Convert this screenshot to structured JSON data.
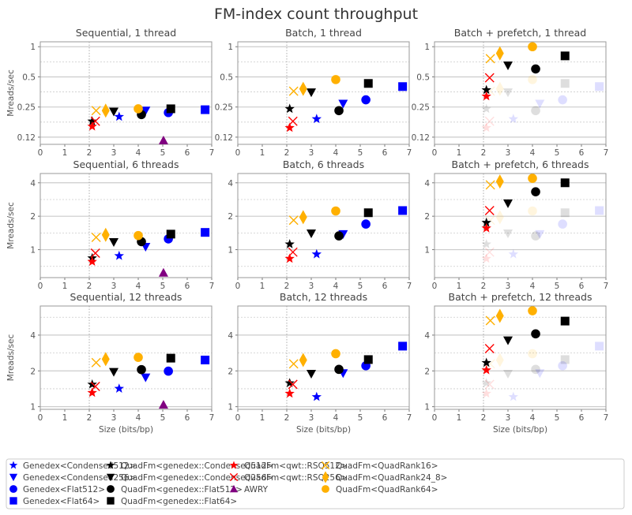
{
  "title": "FM-index count throughput",
  "ylabel": "Mreads/sec",
  "xlabel": "Size (bits/bp)",
  "colors": {
    "blue": "#0000ff",
    "black": "#000000",
    "red": "#ff0000",
    "purple": "#800080",
    "orange": "#ffb000"
  },
  "series": [
    {
      "name": "Genedex<Condensed512>",
      "color": "#0000ff",
      "marker": "star",
      "x": 3.22
    },
    {
      "name": "Genedex<Condensed256>",
      "color": "#0000ff",
      "marker": "triangle-down",
      "x": 4.3
    },
    {
      "name": "Genedex<Flat512>",
      "color": "#0000ff",
      "marker": "circle",
      "x": 5.23
    },
    {
      "name": "Genedex<Flat64>",
      "color": "#0000ff",
      "marker": "square",
      "x": 6.73
    },
    {
      "name": "QuadFm<genedex::Condensed512>",
      "color": "#000000",
      "marker": "star",
      "x": 2.12
    },
    {
      "name": "QuadFm<genedex::Condensed256>",
      "color": "#000000",
      "marker": "triangle-down",
      "x": 3.0
    },
    {
      "name": "QuadFm<genedex::Flat512>",
      "color": "#000000",
      "marker": "circle",
      "x": 4.13
    },
    {
      "name": "QuadFm<genedex::Flat64>",
      "color": "#000000",
      "marker": "square",
      "x": 5.33
    },
    {
      "name": "QuadFm<qwt::RSQ512>",
      "color": "#ff0000",
      "marker": "star",
      "x": 2.12
    },
    {
      "name": "QuadFm<qwt::RSQ256>",
      "color": "#ff0000",
      "marker": "x",
      "x": 2.25
    },
    {
      "name": "AWRY",
      "color": "#800080",
      "marker": "triangle-up",
      "x": 5.03
    },
    {
      "name": "QuadFm<QuadRank16>",
      "color": "#ffb000",
      "marker": "x",
      "x": 2.28
    },
    {
      "name": "QuadFm<QuadRank24_8>",
      "color": "#ffb000",
      "marker": "thin-diamond",
      "x": 2.67
    },
    {
      "name": "QuadFm<QuadRank64>",
      "color": "#ffb000",
      "marker": "circle",
      "x": 4.0
    }
  ],
  "chart_data": [
    {
      "type": "scatter",
      "title": "Sequential, 1 thread",
      "xlim": [
        0,
        7
      ],
      "ylim": [
        0.106,
        1.12
      ],
      "yscale": "log2",
      "yticks": [
        0.125,
        0.25,
        0.5,
        1
      ],
      "ytick_labels": [
        "0.12",
        "0.25",
        "0.5",
        "1"
      ],
      "xticks": [
        0,
        1,
        2,
        3,
        4,
        5,
        6,
        7
      ],
      "grid": true,
      "values": [
        0.2,
        0.23,
        0.22,
        0.235,
        0.18,
        0.225,
        0.21,
        0.24,
        0.16,
        0.18,
        0.116,
        0.23,
        0.23,
        0.24
      ],
      "faded_values": null
    },
    {
      "type": "scatter",
      "title": "Batch, 1 thread",
      "xlim": [
        0,
        7
      ],
      "ylim": [
        0.106,
        1.12
      ],
      "yscale": "log2",
      "yticks": [
        0.125,
        0.25,
        0.5,
        1
      ],
      "ytick_labels": [
        "0.12",
        "0.25",
        "0.5",
        "1"
      ],
      "xticks": [
        0,
        1,
        2,
        3,
        4,
        5,
        6,
        7
      ],
      "grid": true,
      "values": [
        0.19,
        0.27,
        0.295,
        0.4,
        0.24,
        0.35,
        0.23,
        0.43,
        0.155,
        0.18,
        null,
        0.36,
        0.38,
        0.47
      ],
      "faded_values": null
    },
    {
      "type": "scatter",
      "title": "Batch + prefetch, 1 thread",
      "xlim": [
        0,
        7
      ],
      "ylim": [
        0.106,
        1.12
      ],
      "yscale": "log2",
      "yticks": [
        0.125,
        0.25,
        0.5,
        1
      ],
      "ytick_labels": [
        "0.12",
        "0.25",
        "0.5",
        "1"
      ],
      "xticks": [
        0,
        1,
        2,
        3,
        4,
        5,
        6,
        7
      ],
      "grid": true,
      "values": [
        null,
        null,
        null,
        null,
        0.37,
        0.65,
        0.6,
        0.81,
        0.32,
        0.49,
        null,
        0.76,
        0.86,
        1.0
      ],
      "faded_values": [
        0.19,
        0.27,
        0.295,
        0.4,
        0.24,
        0.35,
        0.23,
        0.43,
        0.155,
        0.18,
        null,
        0.36,
        0.38,
        0.47
      ]
    },
    {
      "type": "scatter",
      "title": "Sequential, 6 threads",
      "xlim": [
        0,
        7
      ],
      "ylim": [
        0.56,
        4.85
      ],
      "yscale": "log2",
      "yticks": [
        1,
        2,
        4
      ],
      "ytick_labels": [
        "1",
        "2",
        "4"
      ],
      "xticks": [
        0,
        1,
        2,
        3,
        4,
        5,
        6,
        7
      ],
      "grid": true,
      "values": [
        0.88,
        1.06,
        1.25,
        1.43,
        0.84,
        1.17,
        1.18,
        1.38,
        0.78,
        0.93,
        0.62,
        1.29,
        1.36,
        1.34
      ],
      "faded_values": null
    },
    {
      "type": "scatter",
      "title": "Batch, 6 threads",
      "xlim": [
        0,
        7
      ],
      "ylim": [
        0.56,
        4.85
      ],
      "yscale": "log2",
      "yticks": [
        1,
        2,
        4
      ],
      "ytick_labels": [
        "1",
        "2",
        "4"
      ],
      "xticks": [
        0,
        1,
        2,
        3,
        4,
        5,
        6,
        7
      ],
      "grid": true,
      "values": [
        0.91,
        1.38,
        1.7,
        2.25,
        1.12,
        1.4,
        1.33,
        2.15,
        0.83,
        0.95,
        null,
        1.84,
        1.96,
        2.23
      ],
      "faded_values": null
    },
    {
      "type": "scatter",
      "title": "Batch + prefetch, 6 threads",
      "xlim": [
        0,
        7
      ],
      "ylim": [
        0.56,
        4.85
      ],
      "yscale": "log2",
      "yticks": [
        1,
        2,
        4
      ],
      "ytick_labels": [
        "1",
        "2",
        "4"
      ],
      "xticks": [
        0,
        1,
        2,
        3,
        4,
        5,
        6,
        7
      ],
      "grid": true,
      "values": [
        null,
        null,
        null,
        null,
        1.75,
        2.61,
        3.32,
        4.0,
        1.56,
        2.25,
        null,
        3.83,
        4.11,
        4.39
      ],
      "faded_values": [
        0.91,
        1.38,
        1.7,
        2.25,
        1.12,
        1.4,
        1.33,
        2.15,
        0.83,
        0.95,
        null,
        1.84,
        1.96,
        2.23
      ]
    },
    {
      "type": "scatter",
      "title": "Sequential, 12 threads",
      "xlim": [
        0,
        7
      ],
      "ylim": [
        0.95,
        7.03
      ],
      "yscale": "log2",
      "yticks": [
        1,
        2,
        4
      ],
      "ytick_labels": [
        "1",
        "2",
        "4"
      ],
      "xticks": [
        0,
        1,
        2,
        3,
        4,
        5,
        6,
        7
      ],
      "grid": true,
      "values": [
        1.42,
        1.76,
        1.99,
        2.47,
        1.54,
        1.96,
        2.05,
        2.56,
        1.31,
        1.48,
        1.04,
        2.35,
        2.51,
        2.6
      ],
      "faded_values": null
    },
    {
      "type": "scatter",
      "title": "Batch, 12 threads",
      "xlim": [
        0,
        7
      ],
      "ylim": [
        0.95,
        7.03
      ],
      "yscale": "log2",
      "yticks": [
        1,
        2,
        4
      ],
      "ytick_labels": [
        "1",
        "2",
        "4"
      ],
      "xticks": [
        0,
        1,
        2,
        3,
        4,
        5,
        6,
        7
      ],
      "grid": true,
      "values": [
        1.21,
        1.91,
        2.21,
        3.23,
        1.58,
        1.89,
        2.06,
        2.49,
        1.29,
        1.54,
        null,
        2.29,
        2.47,
        2.79
      ],
      "faded_values": null
    },
    {
      "type": "scatter",
      "title": "Batch + prefetch, 12 threads",
      "xlim": [
        0,
        7
      ],
      "ylim": [
        0.95,
        7.03
      ],
      "yscale": "log2",
      "yticks": [
        1,
        2,
        4
      ],
      "ytick_labels": [
        "1",
        "2",
        "4"
      ],
      "xticks": [
        0,
        1,
        2,
        3,
        4,
        5,
        6,
        7
      ],
      "grid": true,
      "values": [
        null,
        null,
        null,
        null,
        2.34,
        3.61,
        4.1,
        5.25,
        2.03,
        3.08,
        null,
        5.3,
        5.81,
        6.41
      ],
      "faded_values": [
        1.21,
        1.91,
        2.21,
        3.23,
        1.58,
        1.89,
        2.06,
        2.49,
        1.29,
        1.54,
        null,
        2.29,
        2.47,
        2.79
      ]
    }
  ],
  "legend": {
    "placement": "bottom",
    "columns": [
      [
        0,
        1,
        2,
        3
      ],
      [
        4,
        5,
        6,
        7
      ],
      [
        8,
        9,
        10
      ],
      [
        11,
        12,
        13
      ]
    ]
  }
}
